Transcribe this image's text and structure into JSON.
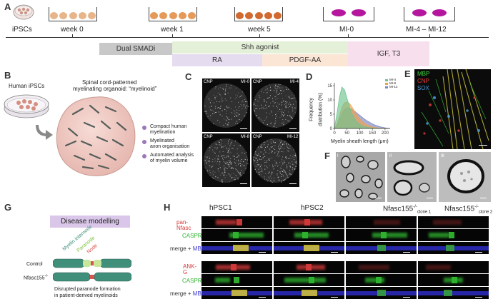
{
  "panels": {
    "A": "A",
    "B": "B",
    "C": "C",
    "D": "D",
    "E": "E",
    "F": "F",
    "G": "G",
    "H": "H"
  },
  "timeline": {
    "stage_labels": [
      "iPSCs",
      "week 0",
      "week 1",
      "week 5",
      "MI-0",
      "MI-4 – MI-12"
    ],
    "bands": [
      "Dual SMADi",
      "Shh agonist",
      "RA",
      "PDGF-AA",
      "IGF, T3"
    ],
    "colors": {
      "smad": "#c8c8c8",
      "shh": "#e4f1d8",
      "ra": "#e6dcef",
      "pdgf": "#fbe6d6",
      "igf": "#f7dfee",
      "cells_ipsc": "#c99789",
      "cells_w0": "#e8b58a",
      "cells_w1": "#e59a5a",
      "cells_w5": "#d06a30",
      "cells_mi": "#b4169d"
    }
  },
  "panel_b": {
    "title": "Human iPSCs",
    "subtitle_line1": "Spinal cord-patterned",
    "subtitle_line2": "myelinating organoid: “myelinoid”",
    "bullets": [
      {
        "l1": "Compact human",
        "l2": "myelination"
      },
      {
        "l1": "Myelinated",
        "l2": "axon organisation"
      },
      {
        "l1": "Automated analysis",
        "l2": "of myelin volume"
      }
    ]
  },
  "panel_c": {
    "stain": "CNP",
    "timepoints": [
      "MI-0",
      "MI-4",
      "MI-8",
      "MI-12"
    ]
  },
  "panel_d": {
    "ylabel_line1": "Frequency",
    "ylabel_line2": "distribution (%)",
    "xlabel": "Myelin sheath length (μm)",
    "yticks": [
      "15",
      "10",
      "5",
      "0"
    ],
    "xticks": [
      "0",
      "50",
      "100",
      "150",
      "200"
    ],
    "legend": [
      "MI-4",
      "MI-8",
      "MI-12"
    ]
  },
  "chart_data": {
    "type": "area",
    "xlabel": "Myelin sheath length (μm)",
    "ylabel": "Frequency distribution (%)",
    "xlim": [
      0,
      220
    ],
    "ylim": [
      0,
      16
    ],
    "x": [
      0,
      10,
      20,
      30,
      40,
      50,
      60,
      70,
      80,
      90,
      100,
      110,
      120,
      130,
      140,
      150,
      160,
      170,
      180,
      190,
      200,
      210,
      220
    ],
    "series": [
      {
        "name": "MI-4",
        "color": "#6fc38f",
        "values": [
          0,
          5,
          11,
          14.5,
          13.5,
          10.5,
          7.5,
          5,
          3.4,
          2.2,
          1.4,
          0.9,
          0.6,
          0.4,
          0.25,
          0.15,
          0.1,
          0.05,
          0.02,
          0,
          0,
          0,
          0
        ]
      },
      {
        "name": "MI-8",
        "color": "#f1a04a",
        "values": [
          0,
          1.5,
          4.5,
          7.5,
          9,
          9.3,
          8.7,
          7.4,
          5.9,
          4.5,
          3.3,
          2.4,
          1.7,
          1.2,
          0.8,
          0.5,
          0.3,
          0.2,
          0.1,
          0.05,
          0,
          0,
          0
        ]
      },
      {
        "name": "MI-12",
        "color": "#7d86bf",
        "values": [
          0,
          1,
          3,
          5.2,
          6.6,
          7.2,
          7.1,
          6.6,
          6,
          5.3,
          4.6,
          3.9,
          3.2,
          2.6,
          2.1,
          1.6,
          1.2,
          0.9,
          0.6,
          0.4,
          0.2,
          0.1,
          0
        ]
      }
    ]
  },
  "panel_e": {
    "labels": [
      "MBP",
      "CNP",
      "SOX"
    ],
    "colors": [
      "#3cd63c",
      "#e03a3a",
      "#4a9ad8"
    ]
  },
  "panel_f": {
    "sublabels": [
      "i",
      "ii",
      "iii"
    ]
  },
  "panel_g": {
    "title": "Disease modelling",
    "legend": [
      "Myelin internode",
      "Paranode",
      "Node"
    ],
    "legend_colors": [
      "#3f8f7a",
      "#a9d86e",
      "#d9534f"
    ],
    "rows": [
      "Control",
      "Nfasc155"
    ],
    "row2_sup": "-/-",
    "caption_line1": "Disrupted paranode formation",
    "caption_line2": "in patient-derived myelinoids"
  },
  "panel_h": {
    "columns": [
      {
        "base": "hPSC1",
        "sup": "",
        "sub": ""
      },
      {
        "base": "hPSC2",
        "sup": "",
        "sub": ""
      },
      {
        "base": "Nfasc155",
        "sup": "-/-",
        "sub": "clone 1"
      },
      {
        "base": "Nfasc155",
        "sup": "-/-",
        "sub": "clone 2"
      }
    ],
    "rows": [
      {
        "label": "pan-Nfasc",
        "color": "#d43a3a"
      },
      {
        "label": "CASPR",
        "color": "#2fb42f"
      },
      {
        "label": "merge + ",
        "label2": "MBP",
        "color": "#333333",
        "color2": "#3a3ad4"
      },
      {
        "label": "ANK-G",
        "color": "#d43a3a"
      },
      {
        "label": "CASPR",
        "color": "#2fb42f"
      },
      {
        "label": "merge + ",
        "label2": "MBP",
        "color": "#333333",
        "color2": "#3a3ad4"
      }
    ]
  }
}
